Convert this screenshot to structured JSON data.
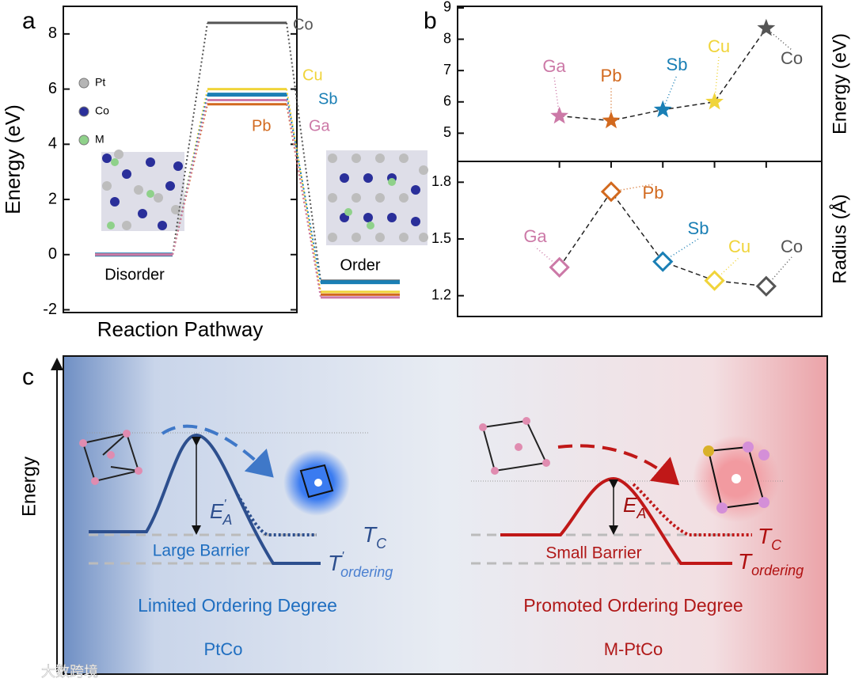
{
  "panel_a": {
    "label": "a",
    "atom_legend": [
      {
        "name": "Pt",
        "color": "#b5b5b5"
      },
      {
        "name": "Co",
        "color": "#2a2f9a"
      },
      {
        "name": "M",
        "color": "#8fd18a"
      }
    ]
  },
  "panel_b": {
    "label": "b"
  },
  "chart_data": [
    {
      "type": "energy-levels",
      "ylabel": "Energy (eV)",
      "xlabel": "Reaction Pathway",
      "ylim": [
        -2.1,
        9
      ],
      "yticks": [
        -2,
        0,
        2,
        4,
        6,
        8
      ],
      "categories": [
        "Disorder",
        null,
        "Order"
      ],
      "series": [
        {
          "name": "Co",
          "color": "#555555",
          "values": [
            0,
            8.4,
            -0.95
          ]
        },
        {
          "name": "Cu",
          "color": "#f0d43a",
          "values": [
            0,
            6.0,
            -1.35
          ]
        },
        {
          "name": "Sb",
          "color": "#1a7fb5",
          "values": [
            0,
            5.8,
            -1.0
          ]
        },
        {
          "name": "Pb",
          "color": "#d2691e",
          "values": [
            0,
            5.45,
            -1.45
          ]
        },
        {
          "name": "Ga",
          "color": "#cc79a7",
          "values": [
            0,
            5.6,
            -1.55
          ]
        }
      ]
    },
    {
      "type": "line",
      "marker": "star",
      "ylabel": "Energy (eV)",
      "ylim": [
        4.1,
        9.05
      ],
      "yticks": [
        5,
        6,
        7,
        8,
        9
      ],
      "categories": [
        "Ga",
        "Pb",
        "Sb",
        "Cu",
        "Co"
      ],
      "point_colors": [
        "#cc79a7",
        "#d2691e",
        "#1a7fb5",
        "#f0d43a",
        "#555555"
      ],
      "values": [
        5.55,
        5.4,
        5.75,
        6.0,
        8.35
      ]
    },
    {
      "type": "line",
      "marker": "diamond",
      "ylabel": "Radius (Å)",
      "ylim": [
        1.09,
        1.91
      ],
      "yticks": [
        1.2,
        1.5,
        1.8
      ],
      "categories": [
        "Ga",
        "Pb",
        "Sb",
        "Cu",
        "Co"
      ],
      "point_colors": [
        "#cc79a7",
        "#d2691e",
        "#1a7fb5",
        "#f0d43a",
        "#555555"
      ],
      "values": [
        1.35,
        1.75,
        1.38,
        1.28,
        1.25
      ]
    }
  ],
  "panel_c": {
    "label": "c",
    "y_axis": "Energy",
    "left": {
      "barrier_symbol": {
        "main": "E",
        "sup": "'",
        "sub": "A"
      },
      "barrier": "Large Barrier",
      "t_c": {
        "main": "T",
        "sub": "C"
      },
      "t_ordering": {
        "main": "T",
        "sup": "'",
        "sub": "ordering"
      },
      "outcome": "Limited Ordering Degree",
      "material": "PtCo"
    },
    "right": {
      "barrier_symbol": {
        "main": "E",
        "sub": "A"
      },
      "barrier": "Small Barrier",
      "t_c": {
        "main": "T",
        "sub": "C"
      },
      "t_ordering": {
        "main": "T",
        "sub": "ordering"
      },
      "outcome": "Promoted Ordering Degree",
      "material": "M-PtCo"
    }
  },
  "watermark": "大数跨境"
}
